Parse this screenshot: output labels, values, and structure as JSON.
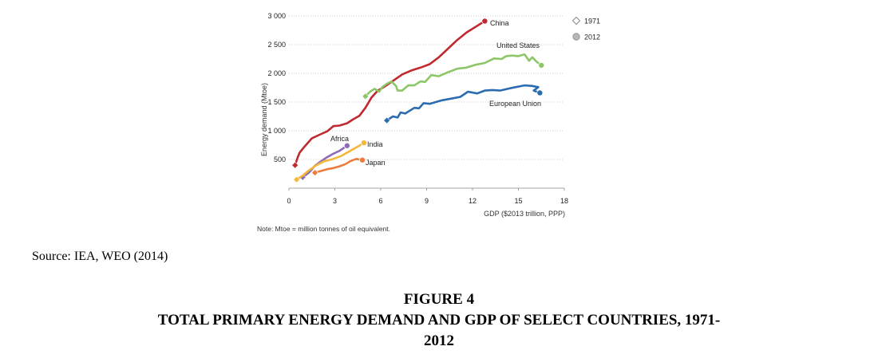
{
  "figure": {
    "source": "Source: IEA, WEO (2014)",
    "number": "FIGURE 4",
    "title_line1": "TOTAL PRIMARY ENERGY DEMAND AND GDP OF SELECT COUNTRIES, 1971-",
    "title_line2": "2012"
  },
  "chart_data": {
    "type": "line",
    "xlabel": "GDP ($2013 trillion, PPP)",
    "ylabel": "Energy demand (Mtoe)",
    "xlim": [
      0,
      18
    ],
    "ylim": [
      0,
      3000
    ],
    "xticks": [
      0,
      3,
      6,
      9,
      12,
      15,
      18
    ],
    "yticks": [
      500,
      1000,
      1500,
      2000,
      2500,
      3000
    ],
    "ytick_labels": [
      "500",
      "1 000",
      "1 500",
      "2 000",
      "2 500",
      "3 000"
    ],
    "grid": "horizontal dotted",
    "legend": [
      {
        "label": "1971",
        "marker": "diamond"
      },
      {
        "label": "2012",
        "marker": "circle"
      }
    ],
    "legend_position": "top-right",
    "note": "Note: Mtoe = million tonnes of oil equivalent.",
    "series": [
      {
        "name": "China",
        "color": "#c0292e",
        "x": [
          0.4,
          0.55,
          0.7,
          1.0,
          1.5,
          2.0,
          2.5,
          2.9,
          3.3,
          3.8,
          4.2,
          4.6,
          5.0,
          5.4,
          5.8,
          6.2,
          6.8,
          7.4,
          8.0,
          8.6,
          9.2,
          9.8,
          10.4,
          11.0,
          11.6,
          12.2,
          12.8
        ],
        "y": [
          400,
          520,
          620,
          720,
          870,
          930,
          990,
          1080,
          1090,
          1130,
          1200,
          1260,
          1400,
          1580,
          1700,
          1760,
          1870,
          1980,
          2050,
          2100,
          2160,
          2280,
          2430,
          2580,
          2710,
          2810,
          2910
        ]
      },
      {
        "name": "United States",
        "color": "#8dc667",
        "x": [
          5.0,
          5.3,
          5.6,
          5.9,
          6.1,
          6.4,
          6.7,
          7.0,
          7.1,
          7.4,
          7.8,
          8.2,
          8.6,
          8.9,
          9.3,
          9.8,
          10.4,
          11.0,
          11.6,
          12.2,
          12.8,
          13.4,
          13.9,
          14.2,
          14.6,
          15.0,
          15.4,
          15.7,
          15.9,
          16.2,
          16.5
        ],
        "y": [
          1600,
          1680,
          1730,
          1680,
          1760,
          1820,
          1860,
          1780,
          1700,
          1700,
          1790,
          1790,
          1860,
          1850,
          1970,
          1950,
          2020,
          2080,
          2100,
          2150,
          2180,
          2260,
          2250,
          2300,
          2310,
          2300,
          2330,
          2220,
          2280,
          2200,
          2140
        ]
      },
      {
        "name": "European Union",
        "color": "#2b6cb0",
        "x": [
          6.4,
          6.8,
          7.1,
          7.3,
          7.6,
          7.9,
          8.2,
          8.5,
          8.8,
          9.2,
          9.6,
          10.0,
          10.6,
          11.2,
          11.7,
          12.3,
          12.8,
          13.3,
          13.8,
          14.3,
          14.8,
          15.4,
          15.9,
          16.3,
          16.0,
          16.4
        ],
        "y": [
          1180,
          1250,
          1230,
          1320,
          1300,
          1350,
          1400,
          1390,
          1480,
          1470,
          1500,
          1530,
          1560,
          1590,
          1680,
          1650,
          1700,
          1710,
          1700,
          1730,
          1760,
          1790,
          1780,
          1760,
          1700,
          1660
        ]
      },
      {
        "name": "Africa",
        "color": "#8b6bb8",
        "x": [
          0.9,
          1.3,
          1.7,
          2.1,
          2.5,
          2.9,
          3.3,
          3.8
        ],
        "y": [
          190,
          270,
          390,
          470,
          540,
          600,
          650,
          740
        ]
      },
      {
        "name": "India",
        "color": "#f5b73b",
        "x": [
          0.5,
          0.9,
          1.3,
          1.8,
          2.3,
          2.8,
          3.4,
          4.0,
          4.6,
          4.9
        ],
        "y": [
          150,
          220,
          310,
          400,
          470,
          500,
          560,
          650,
          740,
          790
        ]
      },
      {
        "name": "Japan",
        "color": "#ee7b3c",
        "x": [
          1.7,
          2.1,
          2.5,
          2.9,
          3.3,
          3.7,
          4.0,
          4.4,
          4.8
        ],
        "y": [
          270,
          300,
          330,
          350,
          380,
          420,
          470,
          510,
          490
        ]
      }
    ]
  }
}
